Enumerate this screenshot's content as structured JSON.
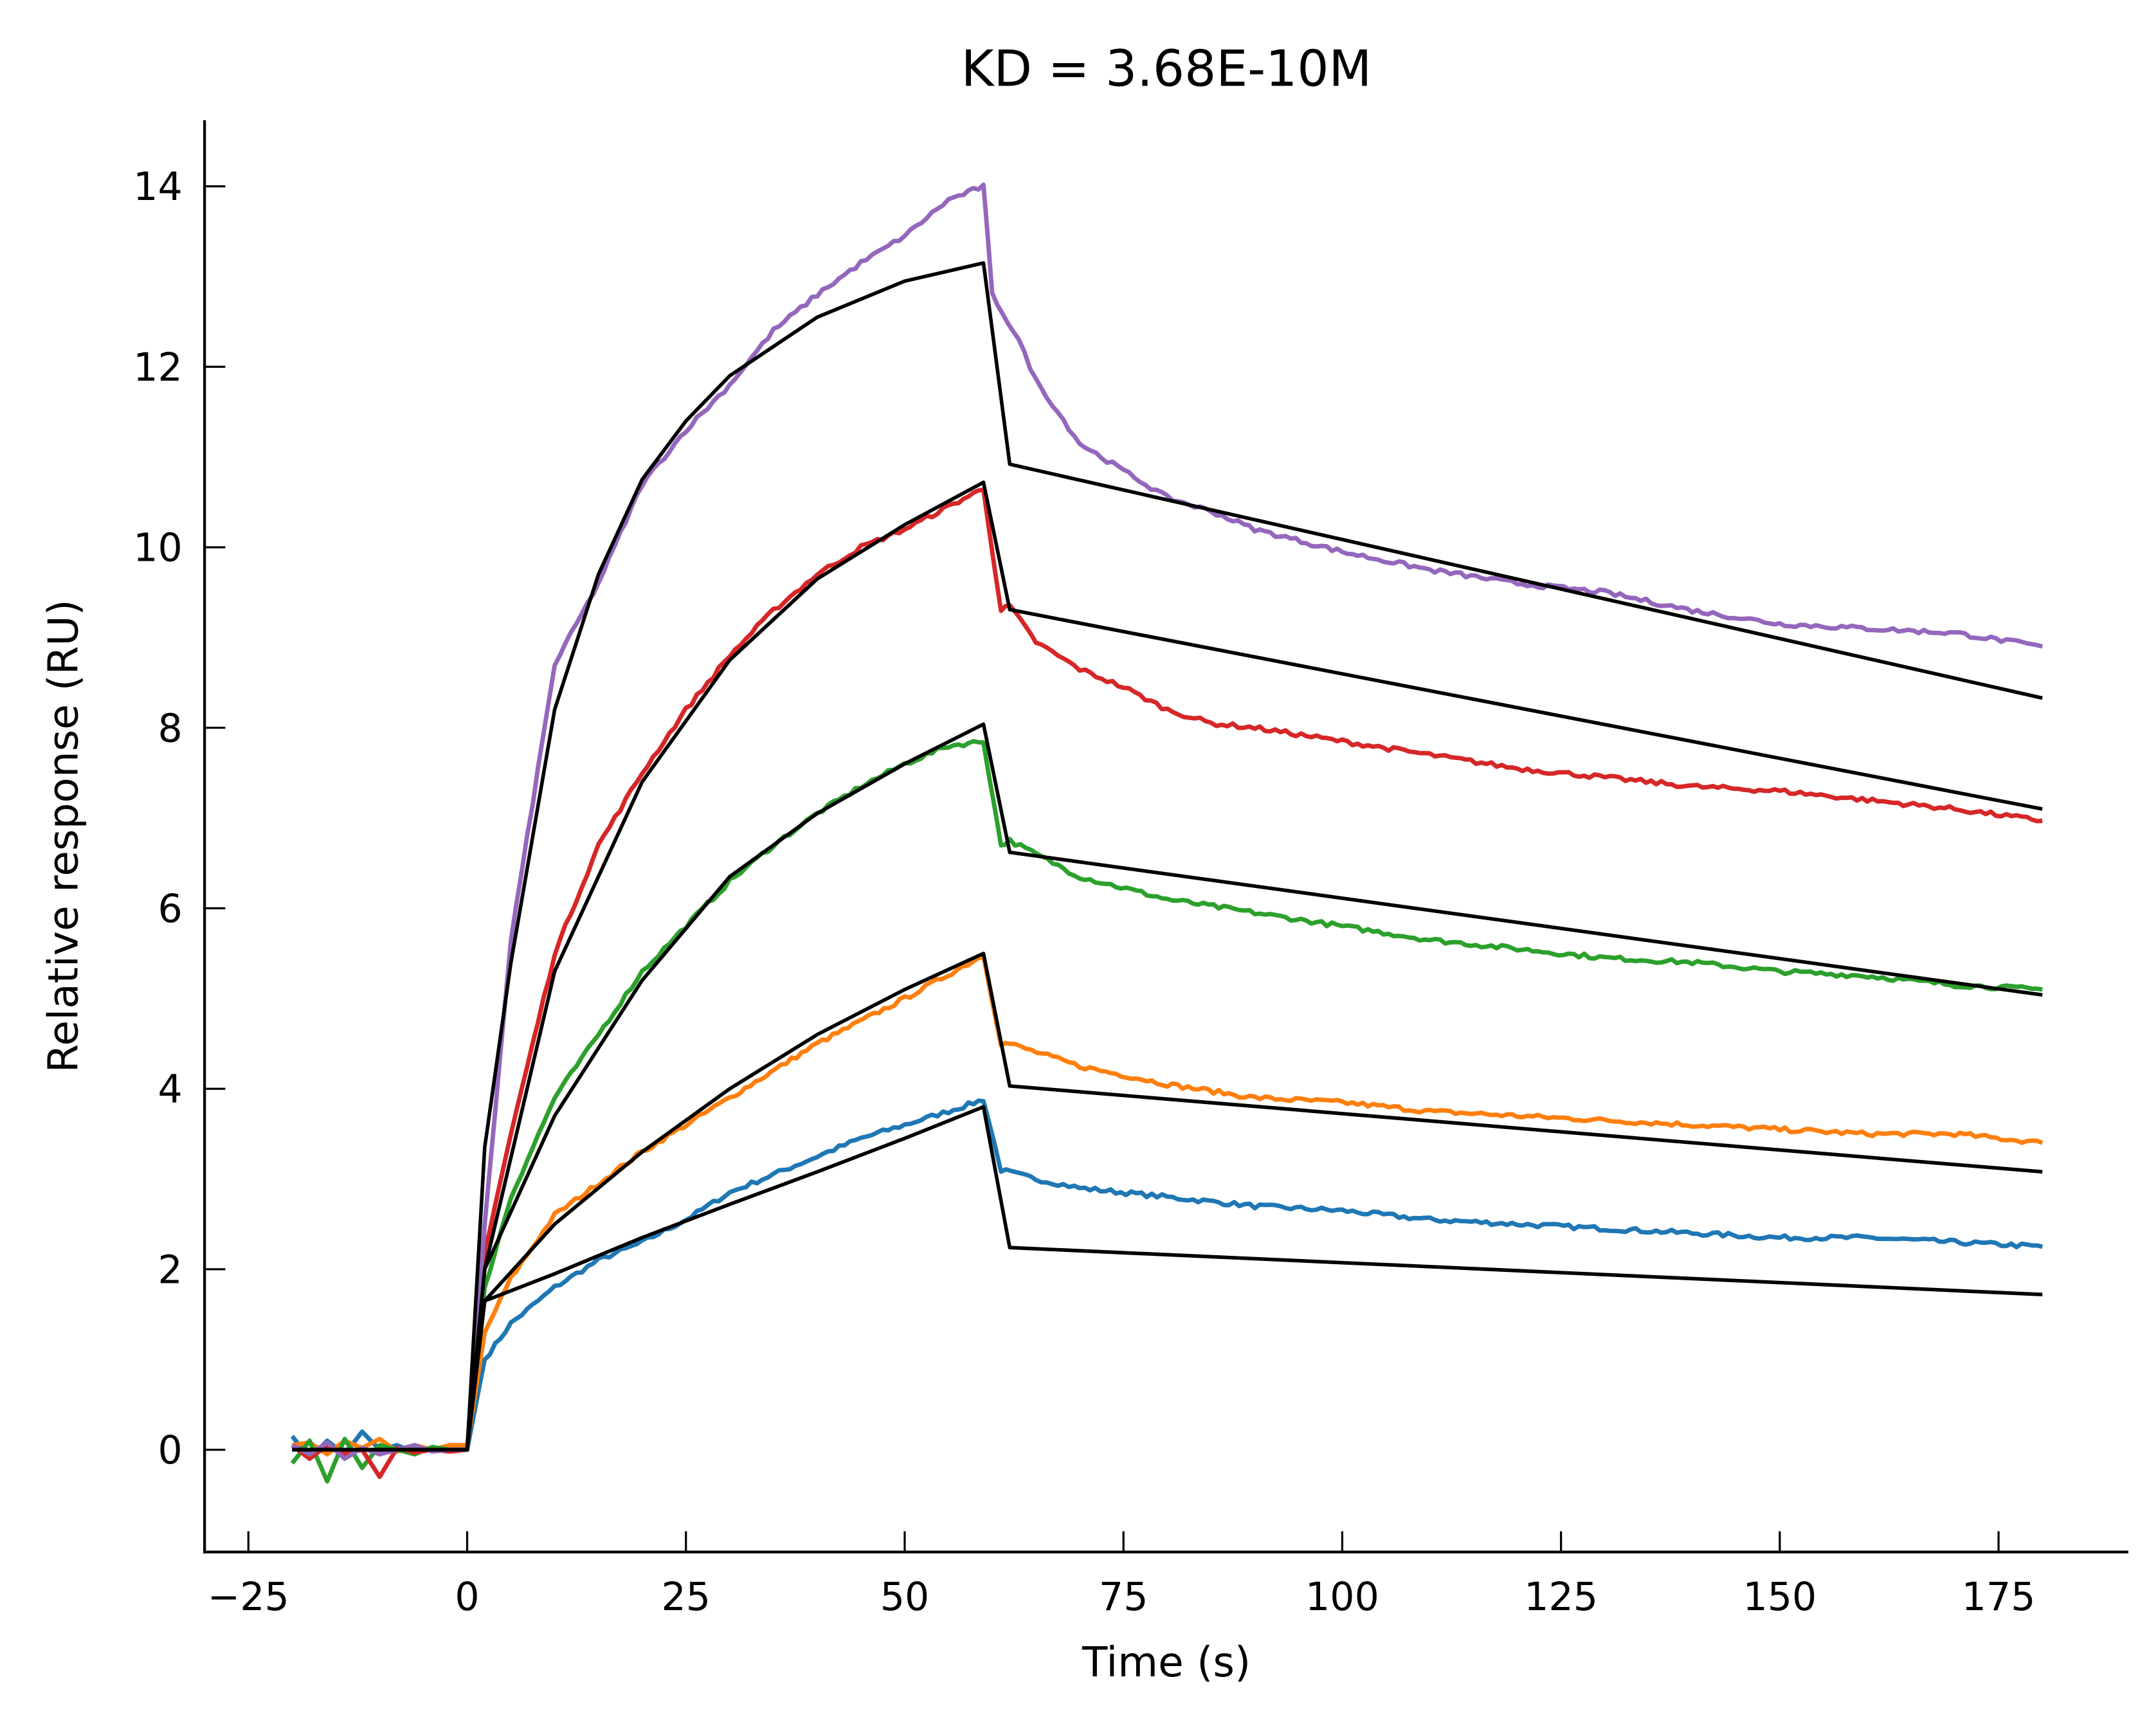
{
  "chart_data": {
    "type": "line",
    "title": "KD = 3.68E-10M",
    "xlabel": "Time (s)",
    "ylabel": "Relative response (RU)",
    "xlim": [
      -30,
      190
    ],
    "ylim": [
      -1.13,
      14.73
    ],
    "xticks": [
      -25,
      0,
      25,
      50,
      75,
      100,
      125,
      150,
      175
    ],
    "xtick_labels": [
      "−25",
      "0",
      "25",
      "50",
      "75",
      "100",
      "125",
      "150",
      "175"
    ],
    "yticks": [
      0,
      2,
      4,
      6,
      8,
      10,
      12,
      14
    ],
    "ytick_labels": [
      "0",
      "2",
      "4",
      "6",
      "8",
      "10",
      "12",
      "14"
    ],
    "grid": false,
    "legend": "none",
    "series": [
      {
        "id": "blue",
        "color": "#1f77b4",
        "x": [
          -20,
          -18,
          -16,
          -14,
          -12,
          -10,
          -8,
          -6,
          -4,
          -2,
          0,
          2,
          5,
          10,
          15,
          20,
          25,
          30,
          35,
          40,
          45,
          50,
          55,
          59,
          61,
          65,
          70,
          80,
          90,
          100,
          110,
          120,
          130,
          140,
          150,
          160,
          170,
          180
        ],
        "y": [
          0.15,
          -0.1,
          0.1,
          -0.05,
          0.2,
          0.0,
          0.05,
          -0.03,
          0.02,
          0.0,
          0.0,
          1.0,
          1.4,
          1.8,
          2.1,
          2.3,
          2.55,
          2.85,
          3.05,
          3.25,
          3.45,
          3.6,
          3.75,
          3.88,
          3.1,
          3.0,
          2.9,
          2.8,
          2.7,
          2.65,
          2.55,
          2.5,
          2.45,
          2.4,
          2.35,
          2.35,
          2.3,
          2.25
        ],
        "fit_x": [
          -20,
          0,
          2,
          10,
          20,
          30,
          40,
          50,
          59,
          62,
          180
        ],
        "fit_y": [
          0,
          0,
          1.65,
          1.95,
          2.35,
          2.72,
          3.08,
          3.45,
          3.8,
          2.24,
          1.72
        ]
      },
      {
        "id": "orange",
        "color": "#ff7f0e",
        "x": [
          -20,
          -18,
          -16,
          -14,
          -12,
          -10,
          -8,
          -6,
          -4,
          -2,
          0,
          2,
          5,
          10,
          20,
          30,
          40,
          50,
          59,
          61,
          62,
          70,
          80,
          90,
          100,
          110,
          120,
          130,
          140,
          150,
          160,
          170,
          180
        ],
        "y": [
          0.05,
          0.08,
          -0.05,
          0.1,
          0.02,
          0.12,
          -0.02,
          0.05,
          0.0,
          0.05,
          0.05,
          1.3,
          1.9,
          2.6,
          3.3,
          3.9,
          4.5,
          5.0,
          5.48,
          4.5,
          4.5,
          4.25,
          4.05,
          3.9,
          3.85,
          3.75,
          3.7,
          3.65,
          3.6,
          3.55,
          3.5,
          3.5,
          3.4
        ],
        "fit_x": [
          -20,
          0,
          2,
          10,
          20,
          30,
          40,
          50,
          59,
          62,
          180
        ],
        "fit_y": [
          0,
          0,
          1.65,
          2.5,
          3.3,
          4.0,
          4.6,
          5.1,
          5.5,
          4.03,
          3.08
        ]
      },
      {
        "id": "green",
        "color": "#2ca02c",
        "x": [
          -20,
          -18,
          -16,
          -14,
          -12,
          -10,
          -8,
          -6,
          -4,
          -2,
          0,
          2,
          5,
          10,
          15,
          20,
          25,
          30,
          35,
          40,
          45,
          50,
          55,
          59,
          61,
          62,
          70,
          80,
          90,
          100,
          110,
          120,
          130,
          140,
          150,
          160,
          170,
          180
        ],
        "y": [
          -0.15,
          0.1,
          -0.35,
          0.12,
          -0.2,
          0.05,
          0.0,
          -0.05,
          0.03,
          0.0,
          0.0,
          1.8,
          2.8,
          3.9,
          4.6,
          5.3,
          5.8,
          6.3,
          6.7,
          7.05,
          7.35,
          7.6,
          7.8,
          7.85,
          6.7,
          6.75,
          6.35,
          6.1,
          5.95,
          5.8,
          5.65,
          5.55,
          5.45,
          5.4,
          5.3,
          5.25,
          5.15,
          5.1
        ],
        "fit_x": [
          -20,
          0,
          2,
          10,
          20,
          30,
          40,
          50,
          59,
          62,
          180
        ],
        "fit_y": [
          0,
          0,
          2.0,
          3.7,
          5.2,
          6.35,
          7.05,
          7.6,
          8.04,
          6.62,
          5.04
        ]
      },
      {
        "id": "red",
        "color": "#d62728",
        "x": [
          -20,
          -18,
          -16,
          -14,
          -12,
          -10,
          -8,
          -6,
          -4,
          -2,
          0,
          2,
          5,
          10,
          15,
          20,
          25,
          30,
          35,
          40,
          45,
          50,
          55,
          59,
          61,
          62,
          65,
          70,
          75,
          80,
          85,
          90,
          100,
          110,
          120,
          130,
          140,
          150,
          160,
          170,
          180
        ],
        "y": [
          0.05,
          -0.1,
          0.05,
          -0.05,
          0.0,
          -0.3,
          0.02,
          -0.03,
          0.0,
          -0.02,
          0.0,
          2.2,
          3.5,
          5.5,
          6.7,
          7.5,
          8.2,
          8.8,
          9.3,
          9.7,
          10.0,
          10.2,
          10.45,
          10.65,
          9.3,
          9.35,
          8.95,
          8.65,
          8.45,
          8.2,
          8.05,
          8.0,
          7.85,
          7.7,
          7.55,
          7.45,
          7.35,
          7.3,
          7.2,
          7.1,
          6.97
        ],
        "fit_x": [
          -20,
          0,
          2,
          10,
          20,
          30,
          40,
          50,
          59,
          62,
          180
        ],
        "fit_y": [
          0,
          0,
          2.0,
          5.3,
          7.4,
          8.75,
          9.65,
          10.25,
          10.72,
          9.31,
          7.1
        ]
      },
      {
        "id": "purple",
        "color": "#9467bd",
        "x": [
          -20,
          -18,
          -16,
          -14,
          -12,
          -10,
          -8,
          -6,
          -4,
          -2,
          0,
          2,
          5,
          10,
          15,
          20,
          25,
          30,
          35,
          40,
          45,
          50,
          55,
          59,
          60,
          63,
          65,
          70,
          75,
          80,
          85,
          90,
          100,
          110,
          120,
          130,
          140,
          150,
          160,
          170,
          180
        ],
        "y": [
          0.05,
          -0.05,
          0.08,
          -0.1,
          0.02,
          -0.05,
          0.0,
          0.05,
          -0.02,
          0.0,
          0.0,
          2.5,
          5.65,
          8.7,
          9.6,
          10.7,
          11.3,
          11.8,
          12.4,
          12.8,
          13.15,
          13.45,
          13.85,
          14.0,
          12.8,
          12.3,
          11.85,
          11.15,
          10.85,
          10.55,
          10.4,
          10.2,
          9.95,
          9.75,
          9.6,
          9.5,
          9.3,
          9.15,
          9.1,
          9.05,
          8.9
        ],
        "fit_x": [
          -20,
          0,
          2,
          5,
          10,
          15,
          20,
          25,
          30,
          40,
          50,
          59,
          62,
          180
        ],
        "fit_y": [
          0,
          0,
          3.35,
          5.4,
          8.2,
          9.7,
          10.75,
          11.4,
          11.9,
          12.55,
          12.95,
          13.15,
          10.92,
          8.33
        ]
      }
    ]
  }
}
